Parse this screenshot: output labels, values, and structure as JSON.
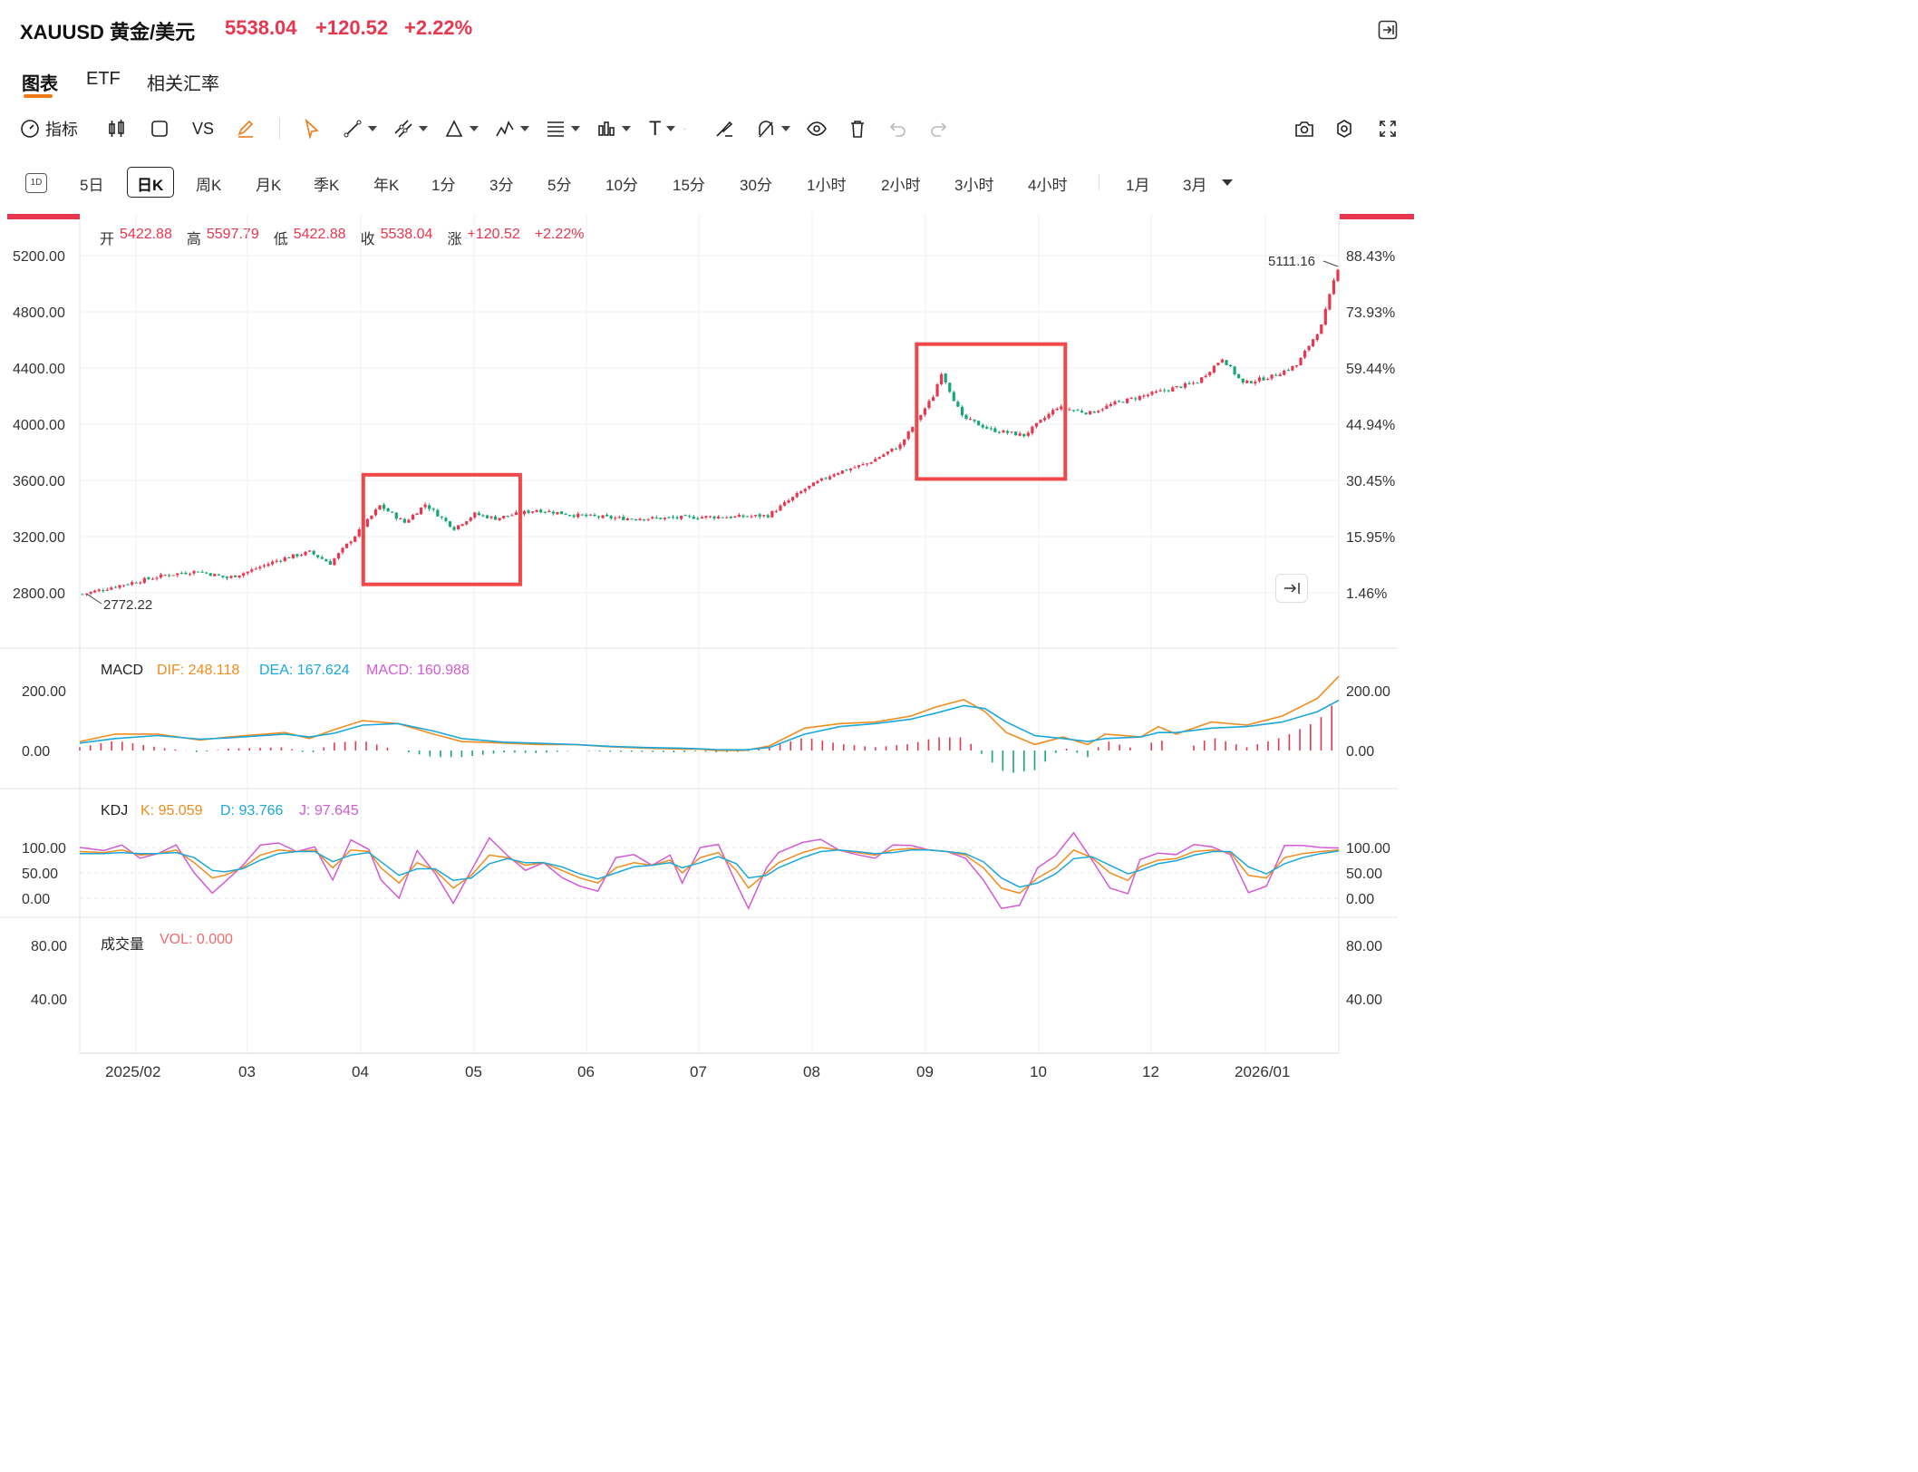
{
  "header": {
    "symbol": "XAUUSD 黄金/美元",
    "price": "5538.04",
    "change": "+120.52",
    "change_pct": "+2.22%"
  },
  "tabs": [
    "图表",
    "ETF",
    "相关汇率"
  ],
  "toolbar": {
    "indicators_label": "指标",
    "vs_label": "VS",
    "icons": [
      "gauge-icon",
      "candlestick-icon",
      "square-icon",
      "vs-compare",
      "pencil-icon",
      "cursor-icon",
      "line-tool-icon",
      "multi-line-icon",
      "triangle-tool-icon",
      "pattern-icon",
      "fib-icon",
      "measure-icon",
      "text-icon",
      "brush-icon",
      "magnet-icon",
      "eye-icon",
      "trash-icon",
      "undo-icon",
      "redo-icon",
      "camera-icon",
      "settings-icon",
      "fullscreen-icon"
    ],
    "text_tool_label": "T"
  },
  "periods": [
    "5日",
    "日K",
    "周K",
    "月K",
    "季K",
    "年K",
    "1分",
    "3分",
    "5分",
    "10分",
    "15分",
    "30分",
    "1小时",
    "2小时",
    "3小时",
    "4小时",
    "1月",
    "3月"
  ],
  "selected_period": "日K",
  "period_icon_label": "1D",
  "ohlc": {
    "open_label": "开",
    "open": "5422.88",
    "high_label": "高",
    "high": "5597.79",
    "low_label": "低",
    "low": "5422.88",
    "close_label": "收",
    "close": "5538.04",
    "chg_label": "涨",
    "chg": "+120.52",
    "chg_pct": "+2.22%"
  },
  "colors": {
    "up": "#e8364f",
    "down": "#16a777",
    "dif": "#f08c1e",
    "dea": "#1aa7dc",
    "macd": "#d35ad6",
    "box": "#f04848",
    "grid": "#eef0f3"
  },
  "chart_data": [
    {
      "type": "candlestick",
      "title": "XAUUSD 黄金/美元",
      "y_ticks": [
        "5200.00",
        "4800.00",
        "4400.00",
        "4000.00",
        "3600.00",
        "3200.00",
        "2800.00"
      ],
      "y_right_ticks": [
        "88.43%",
        "73.93%",
        "59.44%",
        "44.94%",
        "30.45%",
        "15.95%",
        "1.46%"
      ],
      "ylim": [
        2720,
        5290
      ],
      "x_ticks": [
        "2025/02",
        "03",
        "04",
        "05",
        "06",
        "07",
        "08",
        "09",
        "10",
        "12",
        "2026/01"
      ],
      "low_marker": "2772.22",
      "high_marker": "5111.16",
      "close_path": [
        [
          0,
          2790
        ],
        [
          10,
          2860
        ],
        [
          20,
          2925
        ],
        [
          28,
          2955
        ],
        [
          35,
          2905
        ],
        [
          40,
          2950
        ],
        [
          48,
          3040
        ],
        [
          55,
          3090
        ],
        [
          60,
          3010
        ],
        [
          67,
          3240
        ],
        [
          72,
          3420
        ],
        [
          78,
          3300
        ],
        [
          83,
          3430
        ],
        [
          90,
          3260
        ],
        [
          95,
          3360
        ],
        [
          100,
          3330
        ],
        [
          110,
          3390
        ],
        [
          120,
          3350
        ],
        [
          130,
          3330
        ],
        [
          140,
          3330
        ],
        [
          150,
          3340
        ],
        [
          158,
          3340
        ],
        [
          166,
          3350
        ],
        [
          175,
          3540
        ],
        [
          182,
          3650
        ],
        [
          190,
          3720
        ],
        [
          198,
          3850
        ],
        [
          206,
          4200
        ],
        [
          208,
          4370
        ],
        [
          213,
          4050
        ],
        [
          220,
          3960
        ],
        [
          228,
          3920
        ],
        [
          236,
          4120
        ],
        [
          244,
          4080
        ],
        [
          250,
          4150
        ],
        [
          262,
          4240
        ],
        [
          270,
          4300
        ],
        [
          276,
          4470
        ],
        [
          281,
          4290
        ],
        [
          288,
          4340
        ],
        [
          294,
          4420
        ],
        [
          300,
          4700
        ],
        [
          303,
          5020
        ],
        [
          304,
          5111
        ]
      ],
      "boxes": [
        {
          "x_from_label": "04",
          "x_range_idx": [
            68,
            106
          ],
          "y_range": [
            2860,
            3640
          ]
        },
        {
          "x_from_label": "10",
          "x_range_idx": [
            202,
            238
          ],
          "y_range": [
            3610,
            4570
          ]
        }
      ]
    },
    {
      "type": "line",
      "title": "MACD",
      "series": [
        {
          "name": "DIF",
          "label": "DIF: 248.118"
        },
        {
          "name": "DEA",
          "label": "DEA: 167.624"
        },
        {
          "name": "MACD",
          "label": "MACD: 160.988"
        }
      ],
      "y_ticks": [
        "200.00",
        "0.00"
      ],
      "ylim": [
        -95,
        230
      ],
      "dif_path": [
        [
          0,
          30
        ],
        [
          10,
          55
        ],
        [
          22,
          55
        ],
        [
          34,
          35
        ],
        [
          42,
          45
        ],
        [
          58,
          60
        ],
        [
          65,
          40
        ],
        [
          72,
          70
        ],
        [
          80,
          100
        ],
        [
          90,
          90
        ],
        [
          100,
          55
        ],
        [
          108,
          30
        ],
        [
          120,
          25
        ],
        [
          130,
          20
        ],
        [
          140,
          20
        ],
        [
          150,
          12
        ],
        [
          160,
          8
        ],
        [
          170,
          5
        ],
        [
          175,
          5
        ],
        [
          180,
          0
        ],
        [
          188,
          0
        ],
        [
          195,
          15
        ],
        [
          205,
          75
        ],
        [
          215,
          90
        ],
        [
          225,
          95
        ],
        [
          235,
          115
        ],
        [
          242,
          145
        ],
        [
          250,
          170
        ],
        [
          256,
          130
        ],
        [
          262,
          60
        ],
        [
          270,
          20
        ],
        [
          278,
          45
        ],
        [
          285,
          20
        ],
        [
          290,
          55
        ],
        [
          300,
          45
        ],
        [
          305,
          80
        ],
        [
          310,
          55
        ],
        [
          320,
          95
        ],
        [
          330,
          85
        ],
        [
          340,
          115
        ],
        [
          350,
          175
        ],
        [
          356,
          248
        ]
      ],
      "dea_path": [
        [
          0,
          25
        ],
        [
          10,
          40
        ],
        [
          22,
          50
        ],
        [
          34,
          38
        ],
        [
          42,
          42
        ],
        [
          58,
          55
        ],
        [
          65,
          45
        ],
        [
          72,
          58
        ],
        [
          80,
          85
        ],
        [
          90,
          90
        ],
        [
          100,
          65
        ],
        [
          108,
          40
        ],
        [
          120,
          28
        ],
        [
          130,
          24
        ],
        [
          140,
          20
        ],
        [
          150,
          14
        ],
        [
          160,
          10
        ],
        [
          170,
          8
        ],
        [
          175,
          6
        ],
        [
          180,
          3
        ],
        [
          188,
          2
        ],
        [
          195,
          10
        ],
        [
          205,
          55
        ],
        [
          215,
          80
        ],
        [
          225,
          90
        ],
        [
          235,
          105
        ],
        [
          242,
          125
        ],
        [
          250,
          150
        ],
        [
          256,
          140
        ],
        [
          262,
          95
        ],
        [
          270,
          50
        ],
        [
          278,
          40
        ],
        [
          285,
          30
        ],
        [
          290,
          40
        ],
        [
          300,
          45
        ],
        [
          305,
          60
        ],
        [
          310,
          60
        ],
        [
          320,
          75
        ],
        [
          330,
          80
        ],
        [
          340,
          95
        ],
        [
          350,
          130
        ],
        [
          356,
          168
        ]
      ]
    },
    {
      "type": "line",
      "title": "KDJ",
      "series": [
        {
          "name": "K",
          "label": "K: 95.059"
        },
        {
          "name": "D",
          "label": "D: 93.766"
        },
        {
          "name": "J",
          "label": "J: 97.645"
        }
      ],
      "y_ticks": [
        "100.00",
        "50.00",
        "0.00"
      ],
      "ylim": [
        -20,
        130
      ],
      "k_path": [
        [
          0,
          92
        ],
        [
          8,
          90
        ],
        [
          14,
          95
        ],
        [
          20,
          85
        ],
        [
          26,
          88
        ],
        [
          32,
          95
        ],
        [
          38,
          70
        ],
        [
          44,
          40
        ],
        [
          48,
          45
        ],
        [
          54,
          60
        ],
        [
          60,
          85
        ],
        [
          66,
          95
        ],
        [
          72,
          92
        ],
        [
          78,
          95
        ],
        [
          84,
          60
        ],
        [
          90,
          95
        ],
        [
          96,
          92
        ],
        [
          100,
          60
        ],
        [
          106,
          30
        ],
        [
          112,
          70
        ],
        [
          118,
          55
        ],
        [
          124,
          20
        ],
        [
          130,
          45
        ],
        [
          136,
          85
        ],
        [
          142,
          80
        ],
        [
          148,
          65
        ],
        [
          154,
          70
        ],
        [
          160,
          55
        ],
        [
          166,
          40
        ],
        [
          172,
          30
        ],
        [
          178,
          60
        ],
        [
          184,
          70
        ],
        [
          190,
          65
        ],
        [
          196,
          75
        ],
        [
          200,
          50
        ],
        [
          206,
          80
        ],
        [
          212,
          90
        ],
        [
          218,
          55
        ],
        [
          222,
          20
        ],
        [
          228,
          50
        ],
        [
          232,
          70
        ],
        [
          240,
          90
        ],
        [
          246,
          100
        ],
        [
          252,
          95
        ],
        [
          258,
          90
        ],
        [
          264,
          85
        ],
        [
          270,
          95
        ],
        [
          276,
          98
        ],
        [
          282,
          95
        ],
        [
          288,
          92
        ],
        [
          294,
          85
        ],
        [
          300,
          60
        ],
        [
          306,
          20
        ],
        [
          312,
          10
        ],
        [
          318,
          40
        ],
        [
          324,
          60
        ],
        [
          330,
          95
        ],
        [
          336,
          80
        ],
        [
          342,
          50
        ],
        [
          348,
          35
        ],
        [
          352,
          62
        ],
        [
          358,
          75
        ],
        [
          364,
          78
        ],
        [
          370,
          92
        ],
        [
          376,
          95
        ],
        [
          382,
          90
        ],
        [
          388,
          45
        ],
        [
          394,
          40
        ],
        [
          400,
          80
        ],
        [
          406,
          88
        ],
        [
          412,
          92
        ],
        [
          418,
          95
        ]
      ],
      "d_path": [
        [
          0,
          88
        ],
        [
          8,
          88
        ],
        [
          14,
          90
        ],
        [
          20,
          88
        ],
        [
          26,
          88
        ],
        [
          32,
          90
        ],
        [
          38,
          80
        ],
        [
          44,
          55
        ],
        [
          48,
          52
        ],
        [
          54,
          58
        ],
        [
          60,
          75
        ],
        [
          66,
          88
        ],
        [
          72,
          92
        ],
        [
          78,
          92
        ],
        [
          84,
          72
        ],
        [
          90,
          85
        ],
        [
          96,
          90
        ],
        [
          100,
          72
        ],
        [
          106,
          45
        ],
        [
          112,
          58
        ],
        [
          118,
          58
        ],
        [
          124,
          35
        ],
        [
          130,
          40
        ],
        [
          136,
          68
        ],
        [
          142,
          78
        ],
        [
          148,
          70
        ],
        [
          154,
          70
        ],
        [
          160,
          62
        ],
        [
          166,
          48
        ],
        [
          172,
          38
        ],
        [
          178,
          50
        ],
        [
          184,
          62
        ],
        [
          190,
          65
        ],
        [
          196,
          70
        ],
        [
          200,
          60
        ],
        [
          206,
          70
        ],
        [
          212,
          82
        ],
        [
          218,
          68
        ],
        [
          222,
          40
        ],
        [
          228,
          45
        ],
        [
          232,
          60
        ],
        [
          240,
          80
        ],
        [
          246,
          92
        ],
        [
          252,
          95
        ],
        [
          258,
          92
        ],
        [
          264,
          88
        ],
        [
          270,
          90
        ],
        [
          276,
          95
        ],
        [
          282,
          95
        ],
        [
          288,
          92
        ],
        [
          294,
          88
        ],
        [
          300,
          72
        ],
        [
          306,
          40
        ],
        [
          312,
          22
        ],
        [
          318,
          30
        ],
        [
          324,
          48
        ],
        [
          330,
          78
        ],
        [
          336,
          82
        ],
        [
          342,
          65
        ],
        [
          348,
          48
        ],
        [
          352,
          55
        ],
        [
          358,
          68
        ],
        [
          364,
          74
        ],
        [
          370,
          85
        ],
        [
          376,
          92
        ],
        [
          382,
          92
        ],
        [
          388,
          62
        ],
        [
          394,
          48
        ],
        [
          400,
          68
        ],
        [
          406,
          80
        ],
        [
          412,
          88
        ],
        [
          418,
          93
        ]
      ]
    },
    {
      "type": "bar",
      "title": "成交量",
      "series": [
        {
          "name": "VOL",
          "label": "VOL: 0.000"
        }
      ],
      "values": [],
      "y_ticks": [
        "80.00",
        "40.00"
      ]
    }
  ]
}
